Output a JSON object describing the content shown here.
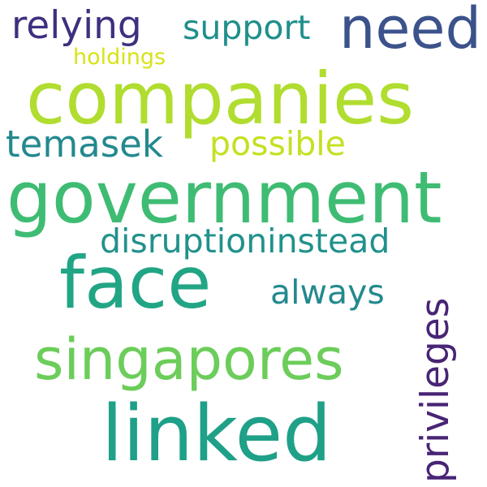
{
  "words": [
    {
      "text": "relying",
      "color": "#3f2f7f"
    },
    {
      "text": "support",
      "color": "#1f8f8b"
    },
    {
      "text": "need",
      "color": "#3b528b"
    },
    {
      "text": "holdings",
      "color": "#d8e219"
    },
    {
      "text": "companies",
      "color": "#b0dd2f"
    },
    {
      "text": "temasek",
      "color": "#23898e"
    },
    {
      "text": "possible",
      "color": "#c5e021"
    },
    {
      "text": "government",
      "color": "#3fbc73"
    },
    {
      "text": "disruptioninstead",
      "color": "#21918c"
    },
    {
      "text": "face",
      "color": "#21a585"
    },
    {
      "text": "always",
      "color": "#23898e"
    },
    {
      "text": "singapores",
      "color": "#6ccd5a"
    },
    {
      "text": "linked",
      "color": "#1fa088"
    },
    {
      "text": "privileges",
      "color": "#482475"
    }
  ]
}
